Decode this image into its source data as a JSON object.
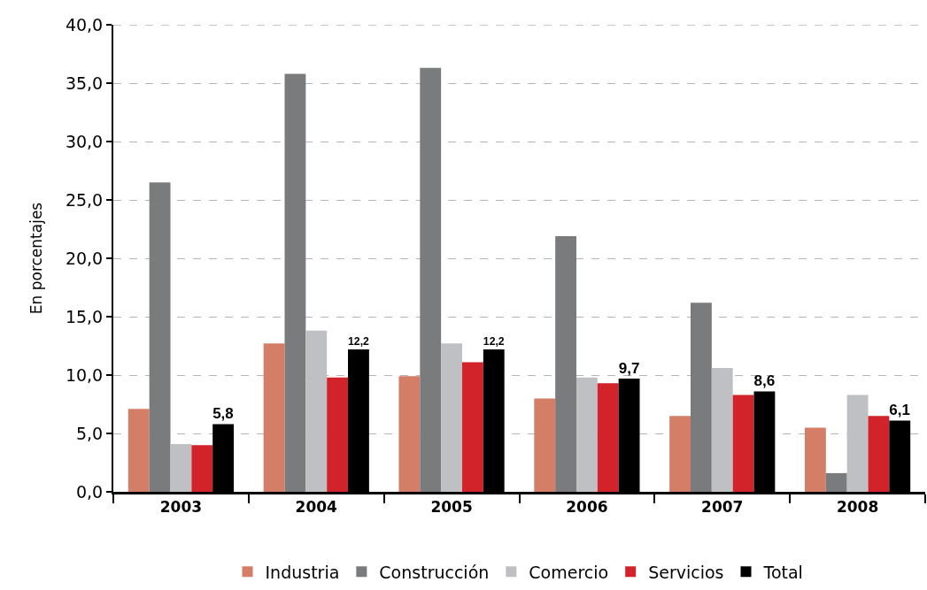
{
  "chart_data": {
    "type": "bar",
    "ylabel": "En porcentajes",
    "categories": [
      "2003",
      "2004",
      "2005",
      "2006",
      "2007",
      "2008"
    ],
    "series": [
      {
        "name": "Industria",
        "color": "#d47e67",
        "values": [
          7.1,
          12.7,
          9.9,
          8.0,
          6.5,
          5.5
        ]
      },
      {
        "name": "Construcción",
        "color": "#7a7b7d",
        "values": [
          26.5,
          35.8,
          36.3,
          21.9,
          16.2,
          1.6
        ]
      },
      {
        "name": "Comercio",
        "color": "#bfc0c3",
        "values": [
          4.1,
          13.8,
          12.7,
          9.8,
          10.6,
          8.3
        ]
      },
      {
        "name": "Servicios",
        "color": "#d2232a",
        "values": [
          4.0,
          9.8,
          11.1,
          9.3,
          8.3,
          6.5
        ]
      },
      {
        "name": "Total",
        "color": "#000000",
        "values": [
          5.8,
          12.2,
          12.2,
          9.7,
          8.6,
          6.1
        ],
        "value_labels": [
          "5,8",
          "12,2",
          "12,2",
          "9,7",
          "8,6",
          "6,1"
        ]
      }
    ],
    "ylim": [
      0,
      40
    ],
    "yticks": [
      {
        "value": 0,
        "label": "0,0"
      },
      {
        "value": 5,
        "label": "5,0"
      },
      {
        "value": 10,
        "label": "10,0"
      },
      {
        "value": 15,
        "label": "15,0"
      },
      {
        "value": 20,
        "label": "20,0"
      },
      {
        "value": 25,
        "label": "25,0"
      },
      {
        "value": 30,
        "label": "30,0"
      },
      {
        "value": 35,
        "label": "35,0"
      },
      {
        "value": 40,
        "label": "40,0"
      }
    ],
    "grid": "y",
    "legend": "bottom"
  }
}
